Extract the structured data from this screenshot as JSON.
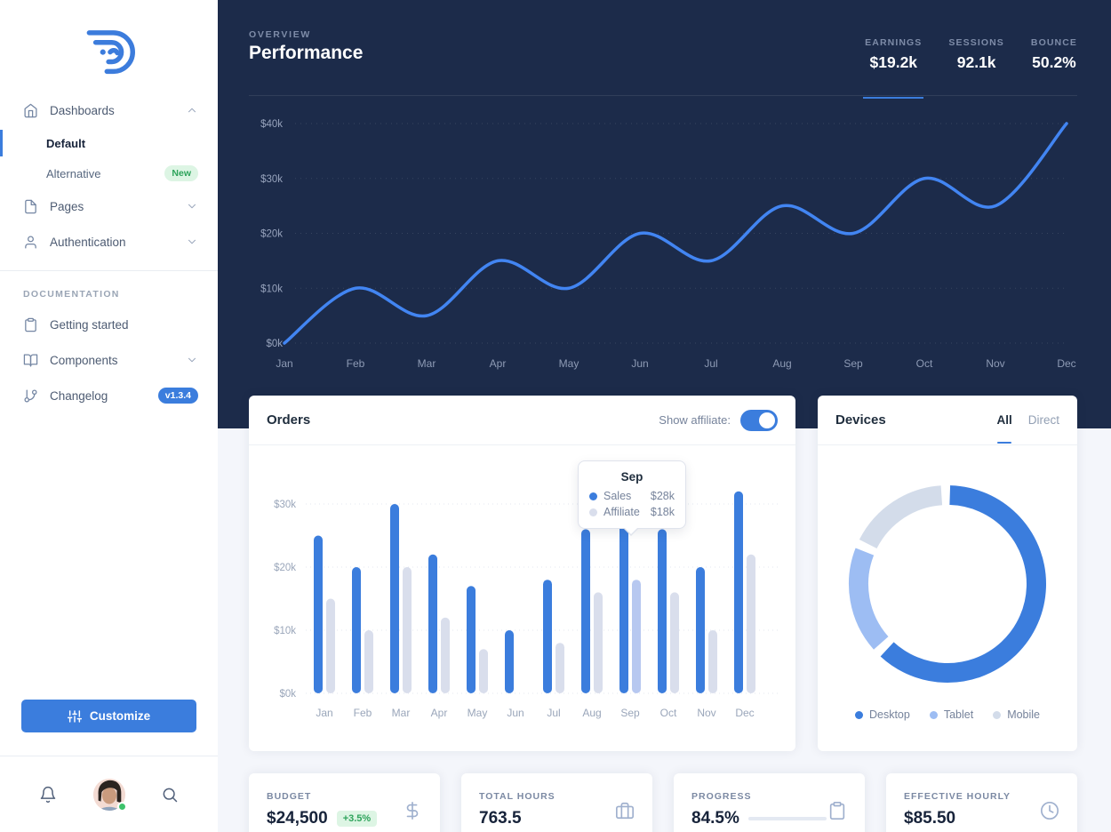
{
  "colors": {
    "accent": "#3B7DDD",
    "navy_bg": "#1C2B4A",
    "page_bg": "#F4F6FB",
    "success_text": "#2FA45C",
    "success_bg": "#DDF5E4",
    "line_stroke": "#4285F2",
    "bar_sales": "#3B7DDD",
    "bar_affiliate": "#D9DEEC",
    "bar_affiliate_highlight": "#B7C8F0",
    "donut_desktop": "#3B7DDD",
    "donut_tablet": "#9DBDF3",
    "donut_mobile": "#D3DCEA"
  },
  "sidebar": {
    "nav": [
      {
        "label": "Dashboards"
      },
      {
        "label": "Default",
        "active": true
      },
      {
        "label": "Alternative",
        "badge": "New"
      },
      {
        "label": "Pages"
      },
      {
        "label": "Authentication"
      }
    ],
    "section_label": "DOCUMENTATION",
    "docs": [
      {
        "label": "Getting started"
      },
      {
        "label": "Components"
      },
      {
        "label": "Changelog",
        "badge": "v1.3.4"
      }
    ],
    "customize_label": "Customize"
  },
  "header": {
    "eyebrow": "OVERVIEW",
    "title": "Performance",
    "stats": [
      {
        "label": "EARNINGS",
        "value": "$19.2k",
        "active": true
      },
      {
        "label": "SESSIONS",
        "value": "92.1k",
        "active": false
      },
      {
        "label": "BOUNCE",
        "value": "50.2%",
        "active": false
      }
    ]
  },
  "orders": {
    "title": "Orders",
    "toggle_label": "Show affiliate:",
    "toggle_on": true,
    "tooltip": {
      "title": "Sep",
      "rows": [
        {
          "label": "Sales",
          "value": "$28k"
        },
        {
          "label": "Affiliate",
          "value": "$18k"
        }
      ]
    }
  },
  "devices": {
    "title": "Devices",
    "tabs": [
      {
        "label": "All",
        "active": true
      },
      {
        "label": "Direct",
        "active": false
      }
    ],
    "legend": [
      {
        "label": "Desktop"
      },
      {
        "label": "Tablet"
      },
      {
        "label": "Mobile"
      }
    ]
  },
  "stat_cards": [
    {
      "label": "BUDGET",
      "value": "$24,500",
      "badge": "+3.5%",
      "icon": "dollar-sign-icon"
    },
    {
      "label": "TOTAL HOURS",
      "value": "763.5",
      "icon": "briefcase-icon"
    },
    {
      "label": "PROGRESS",
      "value": "84.5%",
      "progress_percent": 84.5,
      "icon": "clipboard-icon"
    },
    {
      "label": "EFFECTIVE HOURLY",
      "value": "$85.50",
      "icon": "clock-icon"
    }
  ],
  "chart_data": [
    {
      "type": "line",
      "name": "overview-performance",
      "x": [
        "Jan",
        "Feb",
        "Mar",
        "Apr",
        "May",
        "Jun",
        "Jul",
        "Aug",
        "Sep",
        "Oct",
        "Nov",
        "Dec"
      ],
      "series": [
        {
          "name": "Earnings",
          "values": [
            0,
            10,
            5,
            15,
            10,
            20,
            15,
            25,
            20,
            30,
            25,
            40
          ]
        }
      ],
      "yticks": [
        "$0k",
        "$10k",
        "$20k",
        "$30k",
        "$40k"
      ],
      "ylim": [
        0,
        40
      ],
      "grid": "dotted-horizontal",
      "color": "#4285F2"
    },
    {
      "type": "bar",
      "name": "orders",
      "categories": [
        "Jan",
        "Feb",
        "Mar",
        "Apr",
        "May",
        "Jun",
        "Jul",
        "Aug",
        "Sep",
        "Oct",
        "Nov",
        "Dec"
      ],
      "series": [
        {
          "name": "Sales",
          "values": [
            25,
            20,
            30,
            22,
            17,
            10,
            18,
            26,
            28,
            26,
            20,
            32
          ],
          "color": "#3B7DDD"
        },
        {
          "name": "Affiliate",
          "values": [
            15,
            10,
            20,
            12,
            7,
            0,
            8,
            16,
            18,
            16,
            10,
            22
          ],
          "color": "#D9DEEC"
        }
      ],
      "yticks": [
        "$0k",
        "$10k",
        "$20k",
        "$30k"
      ],
      "ylim": [
        0,
        30
      ],
      "grid": "dotted-horizontal",
      "highlight_category": "Sep",
      "highlight_affiliate_color": "#B7C8F0"
    },
    {
      "type": "donut",
      "name": "devices",
      "slices": [
        {
          "label": "Desktop",
          "percent": 63,
          "color": "#3B7DDD"
        },
        {
          "label": "Tablet",
          "percent": 19,
          "color": "#9DBDF3"
        },
        {
          "label": "Mobile",
          "percent": 18,
          "color": "#D3DCEA"
        }
      ],
      "legend_position": "bottom"
    }
  ]
}
